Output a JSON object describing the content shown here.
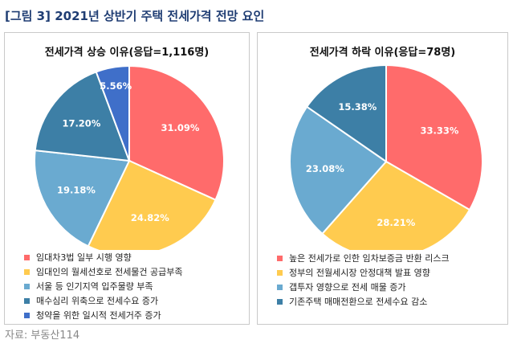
{
  "figure_title": "[그림 3] 2021년 상반기 주택 전세가격 전망 요인",
  "source": "자료: 부동산114",
  "chart_data": [
    {
      "type": "pie",
      "title": "전세가격 상승 이유(응답=1,116명)",
      "labels": [
        "임대차3법 일부 시행 영향",
        "임대인의 월세선호로 전세물건 공급부족",
        "서울 등 인기지역 입주물량 부족",
        "매수심리 위축으로 전세수요 증가",
        "청약을 위한 일시적 전세거주 증가"
      ],
      "values": [
        31.09,
        24.82,
        19.18,
        17.2,
        5.56
      ],
      "value_labels": [
        "31.09%",
        "24.82%",
        "19.18%",
        "17.20%",
        "5.56%"
      ],
      "colors": [
        "#ff6b6b",
        "#ffcb4f",
        "#6aaad0",
        "#3d7fa6",
        "#3f6fc9"
      ],
      "legend_position": "bottom"
    },
    {
      "type": "pie",
      "title": "전세가격 하락 이유(응답=78명)",
      "labels": [
        "높은 전세가로 인한 임차보증금 반환 리스크",
        "정부의 전월세시장 안정대책 발표 영향",
        "갭투자 영향으로 전세 매물 증가",
        "기존주택 매매전환으로 전세수요 감소"
      ],
      "values": [
        33.33,
        28.21,
        23.08,
        15.38
      ],
      "value_labels": [
        "33.33%",
        "28.21%",
        "23.08%",
        "15.38%"
      ],
      "colors": [
        "#ff6b6b",
        "#ffcb4f",
        "#6aaad0",
        "#3d7fa6"
      ],
      "legend_position": "bottom"
    }
  ]
}
